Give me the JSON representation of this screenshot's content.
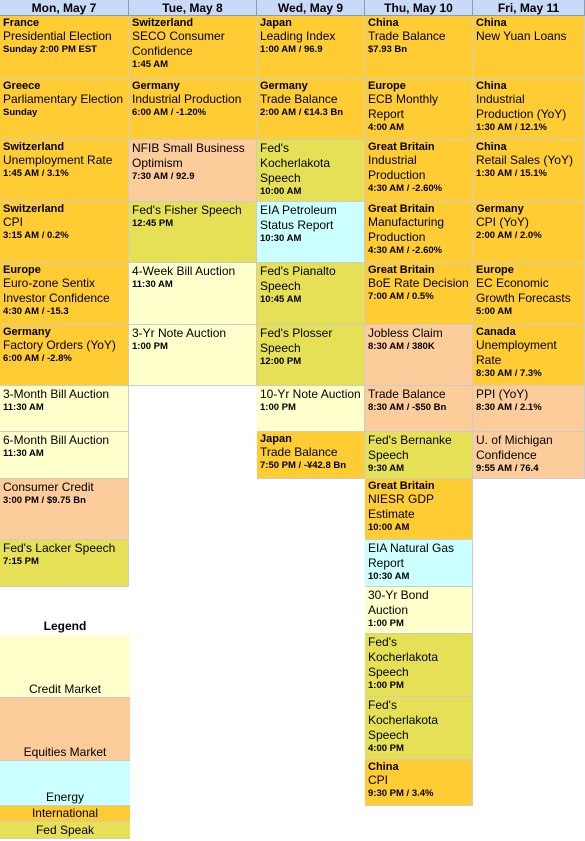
{
  "days": [
    {
      "label": "Mon, May 7"
    },
    {
      "label": "Tue, May 8"
    },
    {
      "label": "Wed, May 9"
    },
    {
      "label": "Thu, May 10"
    },
    {
      "label": "Fri, May 11"
    }
  ],
  "categories": {
    "credit": {
      "label": "Credit Market",
      "color": "#ffffcc"
    },
    "eq": {
      "label": "Equities Market",
      "color": "#fccc9a"
    },
    "energy": {
      "label": "Energy",
      "color": "#ccffff"
    },
    "int": {
      "label": "International",
      "color": "#ffcc33"
    },
    "fed": {
      "label": "Fed Speak",
      "color": "#e6e056"
    }
  },
  "legend_title": "Legend",
  "events": [
    {
      "day": 0,
      "cat": "int",
      "country": "France",
      "title": "Presidential Election",
      "detail": "Sunday 2:00 PM EST"
    },
    {
      "day": 0,
      "cat": "int",
      "country": "Greece",
      "title": "Parliamentary Election",
      "detail": "Sunday"
    },
    {
      "day": 0,
      "cat": "int",
      "country": "Switzerland",
      "title": "Unemployment Rate",
      "detail": "1:45 AM / 3.1%"
    },
    {
      "day": 0,
      "cat": "int",
      "country": "Switzerland",
      "title": "CPI",
      "detail": "3:15 AM / 0.2%"
    },
    {
      "day": 0,
      "cat": "int",
      "country": "Europe",
      "title": "Euro-zone Sentix Investor Confidence",
      "detail": "4:30 AM / -15.3"
    },
    {
      "day": 0,
      "cat": "int",
      "country": "Germany",
      "title": "Factory Orders (YoY)",
      "detail": "6:00 AM / -2.8%"
    },
    {
      "day": 0,
      "cat": "credit",
      "country": "",
      "title": "3-Month Bill Auction",
      "detail": "11:30 AM"
    },
    {
      "day": 0,
      "cat": "credit",
      "country": "",
      "title": "6-Month Bill Auction",
      "detail": "11:30 AM"
    },
    {
      "day": 0,
      "cat": "eq",
      "country": "",
      "title": "Consumer Credit",
      "detail": "3:00 PM / $9.75 Bn"
    },
    {
      "day": 0,
      "cat": "fed",
      "country": "",
      "title": "Fed's Lacker Speech",
      "detail": "7:15 PM"
    },
    {
      "day": 1,
      "cat": "int",
      "country": "Switzerland",
      "title": "SECO Consumer Confidence",
      "detail": "1:45 AM"
    },
    {
      "day": 1,
      "cat": "int",
      "country": "Germany",
      "title": "Industrial Production",
      "detail": "6:00 AM / -1.20%"
    },
    {
      "day": 1,
      "cat": "eq",
      "country": "",
      "title": "NFIB Small Business Optimism",
      "detail": "7:30 AM / 92.9"
    },
    {
      "day": 1,
      "cat": "fed",
      "country": "",
      "title": "Fed's Fisher Speech",
      "detail": "12:45 PM"
    },
    {
      "day": 1,
      "cat": "credit",
      "country": "",
      "title": "4-Week Bill Auction",
      "detail": "11:30 AM"
    },
    {
      "day": 1,
      "cat": "credit",
      "country": "",
      "title": "3-Yr Note Auction",
      "detail": "1:00 PM"
    },
    {
      "day": 2,
      "cat": "int",
      "country": "Japan",
      "title": "Leading Index",
      "detail": "1:00 AM / 96.9"
    },
    {
      "day": 2,
      "cat": "int",
      "country": "Germany",
      "title": "Trade Balance",
      "detail": "2:00 AM / €14.3 Bn"
    },
    {
      "day": 2,
      "cat": "fed",
      "country": "",
      "title": "Fed's Kocherlakota Speech",
      "detail": "10:00 AM"
    },
    {
      "day": 2,
      "cat": "energy",
      "country": "",
      "title": "EIA Petroleum Status Report",
      "detail": "10:30 AM"
    },
    {
      "day": 2,
      "cat": "fed",
      "country": "",
      "title": "Fed's Pianalto Speech",
      "detail": "10:45 AM"
    },
    {
      "day": 2,
      "cat": "fed",
      "country": "",
      "title": "Fed's Plosser Speech",
      "detail": "12:00 PM"
    },
    {
      "day": 2,
      "cat": "credit",
      "country": "",
      "title": "10-Yr Note Auction",
      "detail": "1:00 PM"
    },
    {
      "day": 2,
      "cat": "int",
      "country": "Japan",
      "title": "Trade Balance",
      "detail": "7:50 PM / -¥42.8 Bn"
    },
    {
      "day": 3,
      "cat": "int",
      "country": "China",
      "title": "Trade Balance",
      "detail": "$7.93 Bn"
    },
    {
      "day": 3,
      "cat": "int",
      "country": "Europe",
      "title": "ECB Monthly Report",
      "detail": "4:00 AM"
    },
    {
      "day": 3,
      "cat": "int",
      "country": "Great Britain",
      "title": "Industrial Production",
      "detail": "4:30 AM / -2.60%"
    },
    {
      "day": 3,
      "cat": "int",
      "country": "Great Britain",
      "title": "Manufacturing Production",
      "detail": "4:30 AM / -2.60%"
    },
    {
      "day": 3,
      "cat": "int",
      "country": "Great Britain",
      "title": "BoE Rate Decision",
      "detail": "7:00 AM / 0.5%"
    },
    {
      "day": 3,
      "cat": "eq",
      "country": "",
      "title": "Jobless Claim",
      "detail": "8:30 AM / 380K"
    },
    {
      "day": 3,
      "cat": "eq",
      "country": "",
      "title": "Trade Balance",
      "detail": "8:30 AM / -$50 Bn"
    },
    {
      "day": 3,
      "cat": "fed",
      "country": "",
      "title": "Fed's Bernanke Speech",
      "detail": "9:30 AM"
    },
    {
      "day": 3,
      "cat": "int",
      "country": "Great Britain",
      "title": "NIESR GDP Estimate",
      "detail": "10:00 AM"
    },
    {
      "day": 3,
      "cat": "energy",
      "country": "",
      "title": "EIA Natural Gas Report",
      "detail": "10:30 AM"
    },
    {
      "day": 3,
      "cat": "credit",
      "country": "",
      "title": "30-Yr Bond Auction",
      "detail": "1:00 PM"
    },
    {
      "day": 3,
      "cat": "fed",
      "country": "",
      "title": "Fed's Kocherlakota Speech",
      "detail": "1:00 PM"
    },
    {
      "day": 3,
      "cat": "fed",
      "country": "",
      "title": "Fed's Kocherlakota Speech",
      "detail": "4:00 PM"
    },
    {
      "day": 3,
      "cat": "int",
      "country": "China",
      "title": "CPI",
      "detail": "9:30 PM / 3.4%"
    },
    {
      "day": 4,
      "cat": "int",
      "country": "China",
      "title": "New Yuan Loans",
      "detail": ""
    },
    {
      "day": 4,
      "cat": "int",
      "country": "China",
      "title": "Industrial Production (YoY)",
      "detail": "1:30 AM / 12.1%"
    },
    {
      "day": 4,
      "cat": "int",
      "country": "China",
      "title": "Retail Sales (YoY)",
      "detail": "1:30 AM / 15.1%"
    },
    {
      "day": 4,
      "cat": "int",
      "country": "Germany",
      "title": "CPI (YoY)",
      "detail": "2:00 AM / 2.0%"
    },
    {
      "day": 4,
      "cat": "int",
      "country": "Europe",
      "title": "EC Economic Growth Forecasts",
      "detail": "5:00 AM"
    },
    {
      "day": 4,
      "cat": "int",
      "country": "Canada",
      "title": "Unemployment Rate",
      "detail": "8:30 AM / 7.3%"
    },
    {
      "day": 4,
      "cat": "eq",
      "country": "",
      "title": "PPI (YoY)",
      "detail": "8:30 AM / 2.1%"
    },
    {
      "day": 4,
      "cat": "eq",
      "country": "",
      "title": "U. of Michigan Confidence",
      "detail": "9:55 AM / 76.4"
    }
  ]
}
